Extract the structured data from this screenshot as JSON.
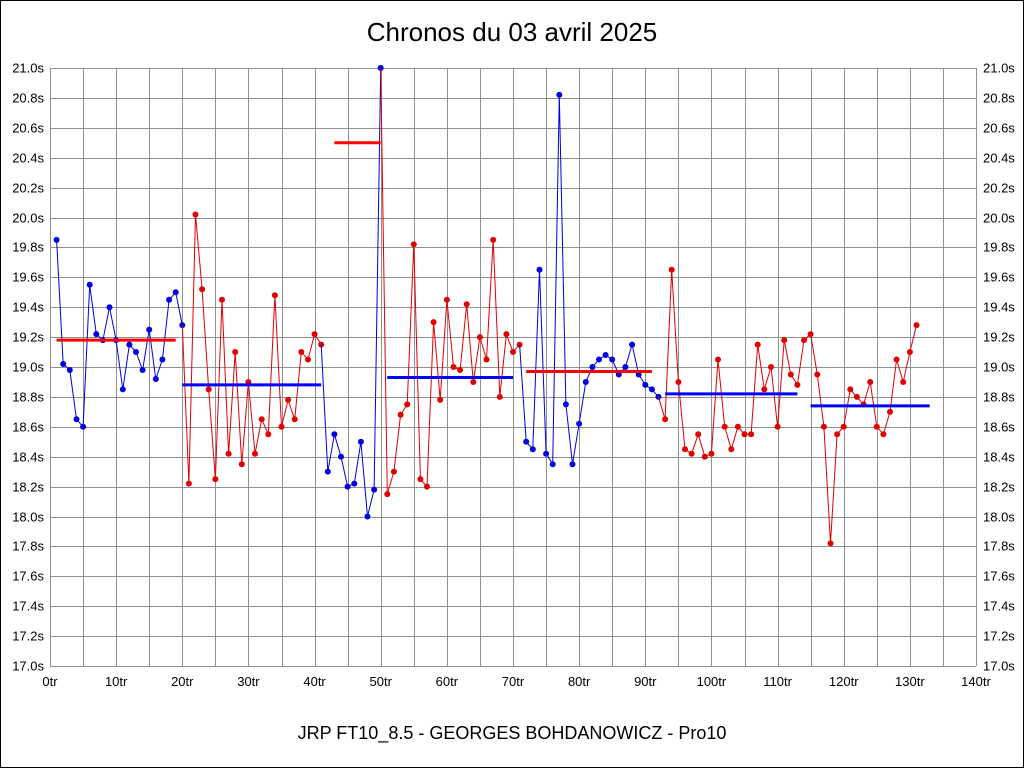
{
  "chart_data": {
    "type": "line",
    "title": "Chronos du 03 avril 2025",
    "footer": "JRP FT10_8.5 - GEORGES BOHDANOWICZ - Pro10",
    "xlabel": "",
    "ylabel": "",
    "xlim": [
      0,
      140
    ],
    "ylim": [
      17.0,
      21.0
    ],
    "x_grid_step": 5,
    "y_tick_step": 0.2,
    "grid": true,
    "x_tick_labels": [
      "0tr",
      "10tr",
      "20tr",
      "30tr",
      "40tr",
      "50tr",
      "60tr",
      "70tr",
      "80tr",
      "90tr",
      "100tr",
      "110tr",
      "120tr",
      "130tr",
      "140tr"
    ],
    "y_tick_labels": [
      "17.0s",
      "17.2s",
      "17.4s",
      "17.6s",
      "17.8s",
      "18.0s",
      "18.2s",
      "18.4s",
      "18.6s",
      "18.8s",
      "19.0s",
      "19.2s",
      "19.4s",
      "19.6s",
      "19.8s",
      "20.0s",
      "20.2s",
      "20.4s",
      "20.6s",
      "20.8s",
      "21.0s"
    ],
    "colors": {
      "red": "#e10000",
      "blue": "#0000e1",
      "avg_red": "#ff0000",
      "avg_blue": "#0000ff",
      "grid": "#909090"
    },
    "segments": [
      {
        "color": "blue",
        "points": [
          [
            1,
            19.85
          ],
          [
            2,
            19.02
          ],
          [
            3,
            18.98
          ],
          [
            4,
            18.65
          ],
          [
            5,
            18.6
          ],
          [
            6,
            19.55
          ],
          [
            7,
            19.22
          ],
          [
            8,
            19.18
          ],
          [
            9,
            19.4
          ],
          [
            10,
            19.18
          ],
          [
            11,
            18.85
          ],
          [
            12,
            19.15
          ],
          [
            13,
            19.1
          ],
          [
            14,
            18.98
          ],
          [
            15,
            19.25
          ],
          [
            16,
            18.92
          ],
          [
            17,
            19.05
          ],
          [
            18,
            19.45
          ],
          [
            19,
            19.5
          ],
          [
            20,
            19.28
          ]
        ]
      },
      {
        "color": "red",
        "points": [
          [
            21,
            18.22
          ],
          [
            22,
            20.02
          ],
          [
            23,
            19.52
          ],
          [
            24,
            18.85
          ],
          [
            25,
            18.25
          ],
          [
            26,
            19.45
          ],
          [
            27,
            18.42
          ],
          [
            28,
            19.1
          ],
          [
            29,
            18.35
          ],
          [
            30,
            18.9
          ],
          [
            31,
            18.42
          ],
          [
            32,
            18.65
          ],
          [
            33,
            18.55
          ],
          [
            34,
            19.48
          ],
          [
            35,
            18.6
          ],
          [
            36,
            18.78
          ],
          [
            37,
            18.65
          ],
          [
            38,
            19.1
          ],
          [
            39,
            19.05
          ],
          [
            40,
            19.22
          ],
          [
            41,
            19.15
          ]
        ]
      },
      {
        "color": "blue",
        "points": [
          [
            42,
            18.3
          ],
          [
            43,
            18.55
          ],
          [
            44,
            18.4
          ],
          [
            45,
            18.2
          ],
          [
            46,
            18.22
          ],
          [
            47,
            18.5
          ],
          [
            48,
            18.0
          ],
          [
            49,
            18.18
          ],
          [
            50,
            21.0
          ]
        ]
      },
      {
        "color": "red",
        "points": [
          [
            51,
            18.15
          ],
          [
            52,
            18.3
          ],
          [
            53,
            18.68
          ],
          [
            54,
            18.75
          ],
          [
            55,
            19.82
          ],
          [
            56,
            18.25
          ],
          [
            57,
            18.2
          ],
          [
            58,
            19.3
          ],
          [
            59,
            18.78
          ],
          [
            60,
            19.45
          ],
          [
            61,
            19.0
          ],
          [
            62,
            18.98
          ],
          [
            63,
            19.42
          ],
          [
            64,
            18.9
          ],
          [
            65,
            19.2
          ],
          [
            66,
            19.05
          ],
          [
            67,
            19.85
          ],
          [
            68,
            18.8
          ],
          [
            69,
            19.22
          ],
          [
            70,
            19.1
          ],
          [
            71,
            19.15
          ]
        ]
      },
      {
        "color": "blue",
        "points": [
          [
            72,
            18.5
          ],
          [
            73,
            18.45
          ],
          [
            74,
            19.65
          ],
          [
            75,
            18.42
          ],
          [
            76,
            18.35
          ],
          [
            77,
            20.82
          ],
          [
            78,
            18.75
          ],
          [
            79,
            18.35
          ],
          [
            80,
            18.62
          ],
          [
            81,
            18.9
          ],
          [
            82,
            19.0
          ],
          [
            83,
            19.05
          ],
          [
            84,
            19.08
          ],
          [
            85,
            19.05
          ],
          [
            86,
            18.95
          ],
          [
            87,
            19.0
          ],
          [
            88,
            19.15
          ],
          [
            89,
            18.95
          ],
          [
            90,
            18.88
          ],
          [
            91,
            18.85
          ],
          [
            92,
            18.8
          ]
        ]
      },
      {
        "color": "red",
        "points": [
          [
            93,
            18.65
          ],
          [
            94,
            19.65
          ],
          [
            95,
            18.9
          ],
          [
            96,
            18.45
          ],
          [
            97,
            18.42
          ],
          [
            98,
            18.55
          ],
          [
            99,
            18.4
          ],
          [
            100,
            18.42
          ],
          [
            101,
            19.05
          ],
          [
            102,
            18.6
          ],
          [
            103,
            18.45
          ],
          [
            104,
            18.6
          ],
          [
            105,
            18.55
          ],
          [
            106,
            18.55
          ],
          [
            107,
            19.15
          ],
          [
            108,
            18.85
          ],
          [
            109,
            19.0
          ],
          [
            110,
            18.6
          ],
          [
            111,
            19.18
          ],
          [
            112,
            18.95
          ],
          [
            113,
            18.88
          ]
        ]
      },
      {
        "color": "red",
        "points": [
          [
            114,
            19.18
          ],
          [
            115,
            19.22
          ],
          [
            116,
            18.95
          ],
          [
            117,
            18.6
          ],
          [
            118,
            17.82
          ],
          [
            119,
            18.55
          ],
          [
            120,
            18.6
          ],
          [
            121,
            18.85
          ],
          [
            122,
            18.8
          ],
          [
            123,
            18.75
          ],
          [
            124,
            18.9
          ],
          [
            125,
            18.6
          ],
          [
            126,
            18.55
          ],
          [
            127,
            18.7
          ],
          [
            128,
            19.05
          ],
          [
            129,
            18.9
          ],
          [
            130,
            19.1
          ],
          [
            131,
            19.28
          ]
        ]
      }
    ],
    "average_lines": [
      {
        "color": "red",
        "y": 19.18,
        "x1": 1,
        "x2": 19
      },
      {
        "color": "blue",
        "y": 18.88,
        "x1": 20,
        "x2": 41
      },
      {
        "color": "red",
        "y": 20.5,
        "x1": 43,
        "x2": 50
      },
      {
        "color": "blue",
        "y": 18.93,
        "x1": 51,
        "x2": 70
      },
      {
        "color": "red",
        "y": 18.97,
        "x1": 72,
        "x2": 91
      },
      {
        "color": "blue",
        "y": 18.82,
        "x1": 93,
        "x2": 113
      },
      {
        "color": "blue",
        "y": 18.74,
        "x1": 115,
        "x2": 133
      }
    ]
  }
}
